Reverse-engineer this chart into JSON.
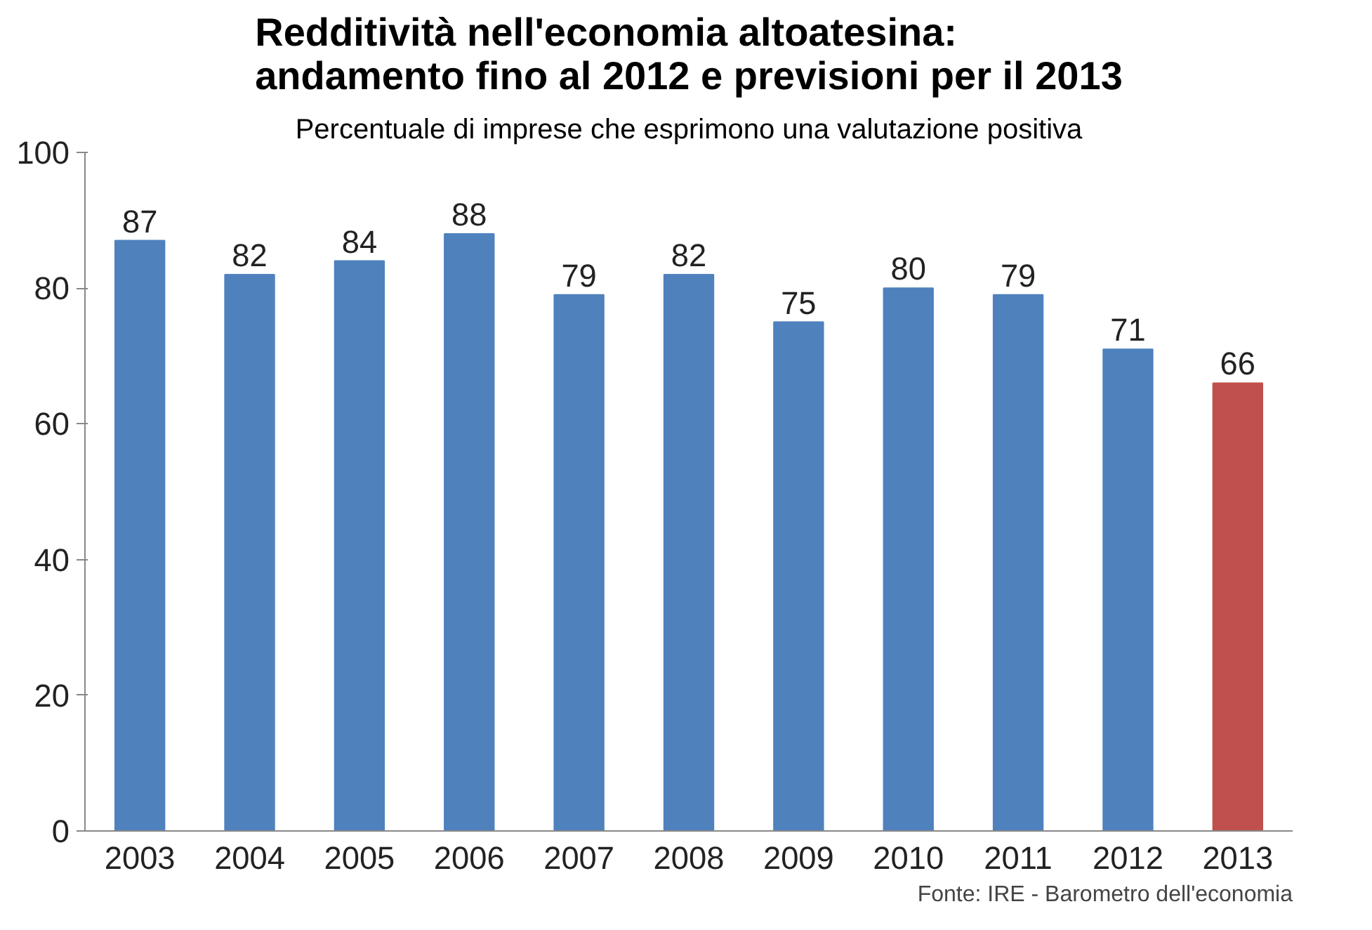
{
  "chart_data": {
    "type": "bar",
    "title": "Redditività nell'economia altoatesina:\nandamento fino al 2012 e previsioni per il 2013",
    "subtitle": "Percentuale di imprese che esprimono una valutazione positiva",
    "categories": [
      "2003",
      "2004",
      "2005",
      "2006",
      "2007",
      "2008",
      "2009",
      "2010",
      "2011",
      "2012",
      "2013"
    ],
    "values": [
      87,
      82,
      84,
      88,
      79,
      82,
      75,
      80,
      79,
      71,
      66
    ],
    "colors": [
      "#4f81bd",
      "#4f81bd",
      "#4f81bd",
      "#4f81bd",
      "#4f81bd",
      "#4f81bd",
      "#4f81bd",
      "#4f81bd",
      "#4f81bd",
      "#4f81bd",
      "#c0504d"
    ],
    "ylim": [
      0,
      100
    ],
    "yticks": [
      0,
      20,
      40,
      60,
      80,
      100
    ],
    "grid": false,
    "data_labels": true,
    "annotations": [
      "Fonte: IRE - Barometro dell'economia"
    ]
  }
}
